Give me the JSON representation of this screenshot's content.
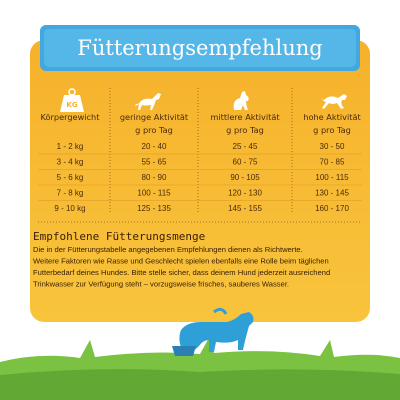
{
  "header": {
    "title": "Fütterungsempfehlung"
  },
  "table": {
    "icon_label": "KG",
    "columns": [
      "Körpergewicht",
      "geringe Aktivität",
      "mittlere Aktivität",
      "hohe Aktivität"
    ],
    "units": [
      "g pro Tag",
      "g pro Tag",
      "g pro Tag"
    ],
    "rows": [
      [
        "1 - 2 kg",
        "20 - 40",
        "25 - 45",
        "30 - 50"
      ],
      [
        "3 - 4 kg",
        "55 - 65",
        "60 - 75",
        "70 - 85"
      ],
      [
        "5 - 6 kg",
        "80 - 90",
        "90 - 105",
        "100 - 115"
      ],
      [
        "7 - 8 kg",
        "100 - 115",
        "120 - 130",
        "130 - 145"
      ],
      [
        "9 - 10 kg",
        "125 - 135",
        "145 - 155",
        "160 - 170"
      ]
    ]
  },
  "note": {
    "title": "Empfohlene Fütterungsmenge",
    "lines": [
      "Die in der Fütterungstabelle angegebenen Empfehlungen dienen als Richtwerte.",
      "Weitere Faktoren wie Rasse und Geschlecht spielen ebenfalls eine Rolle beim täglichen",
      "Futterbedarf deines Hundes. Bitte stelle sicher, dass deinem Hund jederzeit ausreichend",
      "Trinkwasser zur Verfügung steht – vorzugsweise frisches, sauberes Wasser."
    ]
  }
}
